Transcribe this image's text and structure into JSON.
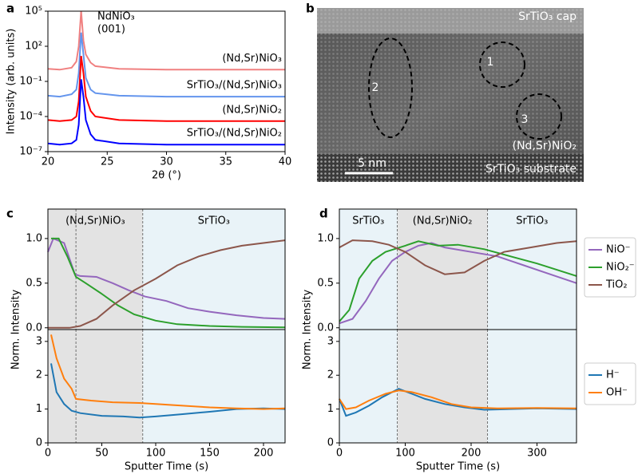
{
  "panel_labels": [
    "a",
    "b",
    "c",
    "d"
  ],
  "tem_image": {
    "cap": "SrTiO₃ cap",
    "substrate": "SrTiO₃ substrate",
    "layer": "(Nd,Sr)NiO₂",
    "scale": "5 nm",
    "regions": [
      "1",
      "2",
      "3"
    ]
  },
  "chart_data": [
    {
      "type": "line",
      "log": true,
      "xlabel": "2θ (°)",
      "ylabel": "Intensity (arb. units)",
      "annotations": [
        "NdNiO₃",
        "(001)"
      ],
      "xlim": [
        20,
        40
      ],
      "xticks": [
        20,
        25,
        30,
        35,
        40
      ],
      "ylim": [
        1e-07,
        100000.0
      ],
      "yticks": [
        {
          "value": 1e-07,
          "label": "10⁻⁷"
        },
        {
          "value": 0.0001,
          "label": "10⁻⁴"
        },
        {
          "value": 0.1,
          "label": "10⁻¹"
        },
        {
          "value": 100,
          "label": "10²"
        },
        {
          "value": 100000.0,
          "label": "10⁵"
        }
      ],
      "series": [
        {
          "name": "(Nd,Sr)NiO₃",
          "color": "#f08080",
          "x": [
            20,
            21,
            22,
            22.4,
            22.6,
            22.8,
            23.0,
            23.2,
            23.6,
            24,
            26,
            30,
            35,
            40
          ],
          "values": [
            1.2,
            1.0,
            1.5,
            5,
            100,
            100000,
            300,
            20,
            4,
            2,
            1.2,
            1,
            1,
            1
          ]
        },
        {
          "name": "SrTiO₃/(Nd,Sr)NiO₃",
          "color": "#6495ed",
          "x": [
            20,
            21,
            22,
            22.4,
            22.6,
            22.8,
            23.0,
            23.2,
            23.6,
            24,
            26,
            30,
            35,
            40
          ],
          "values": [
            0.006,
            0.005,
            0.008,
            0.02,
            0.5,
            1500,
            20,
            0.2,
            0.02,
            0.01,
            0.006,
            0.005,
            0.005,
            0.005
          ]
        },
        {
          "name": "(Nd,Sr)NiO₂",
          "color": "#ff0000",
          "x": [
            20,
            21,
            22,
            22.4,
            22.6,
            22.8,
            23.0,
            23.2,
            23.6,
            24,
            26,
            30,
            35,
            40
          ],
          "values": [
            5e-05,
            4e-05,
            5e-05,
            0.0001,
            0.002,
            15,
            0.5,
            0.005,
            0.0003,
            0.0001,
            5e-05,
            4e-05,
            4e-05,
            4e-05
          ]
        },
        {
          "name": "SrTiO₃/(Nd,Sr)NiO₂",
          "color": "#0000ff",
          "x": [
            20,
            21,
            22,
            22.4,
            22.6,
            22.8,
            23.0,
            23.2,
            23.6,
            24,
            26,
            30,
            35,
            40
          ],
          "values": [
            5e-07,
            4e-07,
            5e-07,
            1e-06,
            2e-05,
            0.15,
            0.005,
            5e-05,
            3e-06,
            1e-06,
            5e-07,
            4e-07,
            4e-07,
            4e-07
          ]
        }
      ]
    },
    {
      "type": "line",
      "ylabel": "Norm. Intensity",
      "regions": [
        {
          "label": "(Nd,Sr)NiO₃",
          "range": [
            0,
            88
          ],
          "color": "#e3e3e3"
        },
        {
          "label": "SrTiO₃",
          "range": [
            88,
            220
          ],
          "color": "#e9f3f8"
        }
      ],
      "dividers": [
        26,
        88
      ],
      "xlim": [
        0,
        220
      ],
      "xticks": [
        0,
        50,
        100,
        150,
        200
      ],
      "ylim": [
        -0.02,
        1.33
      ],
      "yticks": [
        {
          "value": 0,
          "label": "0.0"
        },
        0.5,
        {
          "value": 1,
          "label": "1.0"
        }
      ],
      "series": [
        {
          "color": "#9467bd",
          "x": [
            0,
            5,
            15,
            25,
            30,
            45,
            60,
            75,
            90,
            110,
            130,
            150,
            175,
            200,
            220
          ],
          "values": [
            0.85,
            1.0,
            0.95,
            0.6,
            0.58,
            0.57,
            0.5,
            0.42,
            0.35,
            0.3,
            0.22,
            0.18,
            0.14,
            0.11,
            0.1
          ]
        },
        {
          "color": "#2ca02c",
          "x": [
            3,
            10,
            18,
            26,
            35,
            50,
            65,
            80,
            100,
            120,
            150,
            180,
            220
          ],
          "values": [
            1.0,
            1.0,
            0.8,
            0.57,
            0.5,
            0.38,
            0.25,
            0.15,
            0.08,
            0.04,
            0.02,
            0.01,
            0.005
          ]
        },
        {
          "color": "#8c564b",
          "x": [
            0,
            20,
            30,
            45,
            60,
            80,
            100,
            120,
            140,
            160,
            180,
            200,
            220
          ],
          "values": [
            0,
            0,
            0.02,
            0.1,
            0.25,
            0.42,
            0.55,
            0.7,
            0.8,
            0.87,
            0.92,
            0.95,
            0.98
          ]
        }
      ]
    },
    {
      "type": "line",
      "xlabel": "Sputter Time (s)",
      "xlim": [
        0,
        220
      ],
      "xticks": [
        0,
        50,
        100,
        150,
        200
      ],
      "ylim": [
        0,
        3.35
      ],
      "yticks": [
        0,
        1,
        2,
        3
      ],
      "series": [
        {
          "color": "#1f77b4",
          "x": [
            3,
            8,
            15,
            22,
            30,
            50,
            70,
            85,
            100,
            125,
            150,
            175,
            200,
            220
          ],
          "values": [
            2.35,
            1.5,
            1.15,
            0.95,
            0.88,
            0.8,
            0.78,
            0.75,
            0.78,
            0.85,
            0.92,
            1.0,
            1.02,
            1.0
          ]
        },
        {
          "color": "#ff7f0e",
          "x": [
            3,
            8,
            15,
            22,
            26,
            40,
            60,
            85,
            100,
            125,
            150,
            175,
            200,
            220
          ],
          "values": [
            3.2,
            2.5,
            1.9,
            1.6,
            1.3,
            1.25,
            1.2,
            1.18,
            1.15,
            1.1,
            1.05,
            1.02,
            1.0,
            1.02
          ]
        }
      ]
    },
    {
      "type": "line",
      "ylabel": "Norm. Intensity",
      "legend": "outside-right",
      "regions": [
        {
          "label": "SrTiO₃",
          "range": [
            0,
            88
          ],
          "color": "#e9f3f8"
        },
        {
          "label": "(Nd,Sr)NiO₂",
          "range": [
            88,
            225
          ],
          "color": "#e3e3e3"
        },
        {
          "label": "SrTiO₃",
          "range": [
            225,
            360
          ],
          "color": "#e9f3f8"
        }
      ],
      "dividers": [
        88,
        225
      ],
      "xlim": [
        0,
        360
      ],
      "xticks": [
        0,
        100,
        200,
        300
      ],
      "ylim": [
        -0.02,
        1.33
      ],
      "yticks": [
        {
          "value": 0,
          "label": "0.0"
        },
        0.5,
        {
          "value": 1,
          "label": "1.0"
        }
      ],
      "series": [
        {
          "name": "NiO⁻",
          "color": "#9467bd",
          "x": [
            0,
            20,
            40,
            60,
            80,
            100,
            120,
            140,
            160,
            200,
            240,
            280,
            320,
            360
          ],
          "values": [
            0.05,
            0.1,
            0.3,
            0.55,
            0.75,
            0.85,
            0.92,
            0.95,
            0.9,
            0.85,
            0.8,
            0.7,
            0.6,
            0.5
          ]
        },
        {
          "name": "NiO₂⁻",
          "color": "#2ca02c",
          "x": [
            0,
            15,
            30,
            50,
            70,
            100,
            120,
            150,
            180,
            220,
            260,
            300,
            330,
            360
          ],
          "values": [
            0.07,
            0.2,
            0.55,
            0.75,
            0.85,
            0.92,
            0.97,
            0.92,
            0.93,
            0.88,
            0.8,
            0.72,
            0.65,
            0.58
          ]
        },
        {
          "name": "TiO₂",
          "color": "#8c564b",
          "x": [
            0,
            20,
            50,
            75,
            100,
            130,
            160,
            190,
            220,
            250,
            290,
            330,
            360
          ],
          "values": [
            0.9,
            0.98,
            0.97,
            0.93,
            0.85,
            0.7,
            0.6,
            0.62,
            0.75,
            0.85,
            0.9,
            0.95,
            0.97
          ]
        }
      ]
    },
    {
      "type": "line",
      "xlabel": "Sputter Time (s)",
      "legend": "outside-right",
      "xlim": [
        0,
        360
      ],
      "xticks": [
        0,
        100,
        200,
        300
      ],
      "ylim": [
        0,
        3.35
      ],
      "yticks": [
        0,
        1,
        2,
        3
      ],
      "series": [
        {
          "name": "H⁻",
          "color": "#1f77b4",
          "x": [
            0,
            10,
            25,
            45,
            65,
            90,
            110,
            130,
            160,
            190,
            220,
            260,
            300,
            360
          ],
          "values": [
            1.3,
            0.8,
            0.9,
            1.1,
            1.35,
            1.6,
            1.45,
            1.3,
            1.15,
            1.05,
            0.98,
            1.0,
            1.02,
            1.0
          ]
        },
        {
          "name": "OH⁻",
          "color": "#ff7f0e",
          "x": [
            0,
            10,
            25,
            45,
            70,
            90,
            110,
            140,
            170,
            200,
            240,
            300,
            360
          ],
          "values": [
            1.3,
            1.0,
            1.05,
            1.25,
            1.45,
            1.55,
            1.5,
            1.35,
            1.15,
            1.05,
            1.02,
            1.03,
            1.02
          ]
        }
      ]
    }
  ]
}
